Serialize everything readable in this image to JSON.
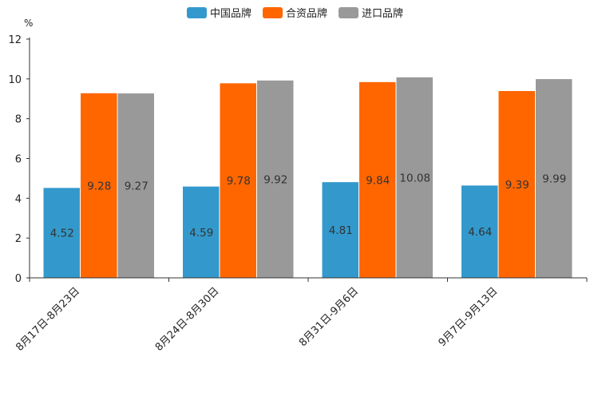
{
  "chart_data": {
    "type": "bar",
    "title": "",
    "unit_label": "%",
    "xlabel": "",
    "ylabel": "",
    "ylim": [
      0,
      12
    ],
    "yticks": [
      0,
      2,
      4,
      6,
      8,
      10,
      12
    ],
    "grid": false,
    "legend_position": "top-center",
    "categories": [
      "8月17日-8月23日",
      "8月24日-8月30日",
      "8月31日-9月6日",
      "9月7日-9月13日"
    ],
    "series": [
      {
        "name": "中国品牌",
        "color": "#3399cc",
        "values": [
          4.52,
          4.59,
          4.81,
          4.64
        ],
        "labels": [
          "4.52",
          "4.59",
          "4.81",
          "4.64"
        ]
      },
      {
        "name": "合资品牌",
        "color": "#ff6600",
        "values": [
          9.28,
          9.78,
          9.84,
          9.39
        ],
        "labels": [
          "9.28",
          "9.78",
          "9.84",
          "9.39"
        ]
      },
      {
        "name": "进口品牌",
        "color": "#999999",
        "values": [
          9.27,
          9.92,
          10.08,
          9.99
        ],
        "labels": [
          "9.27",
          "9.92",
          "10.08",
          "9.99"
        ]
      }
    ]
  }
}
